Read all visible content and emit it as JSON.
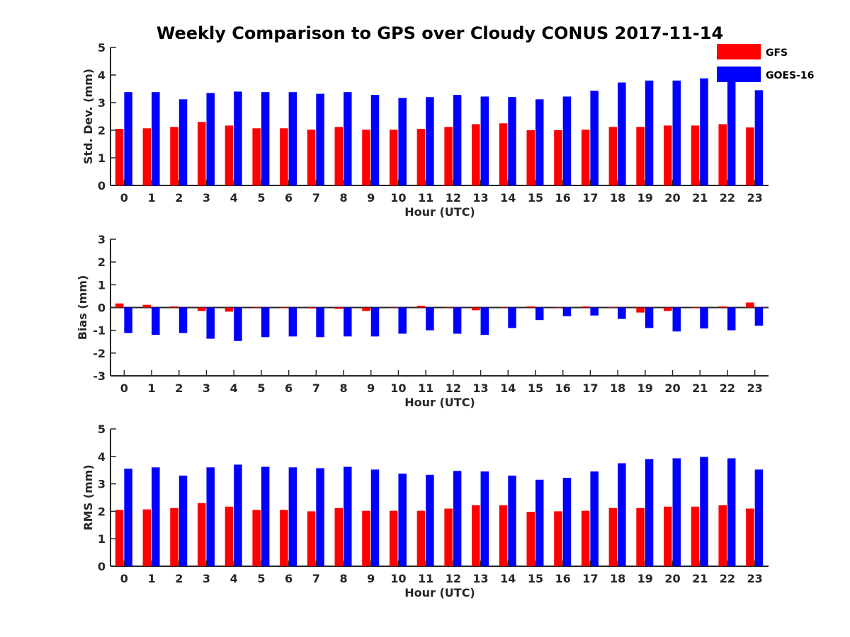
{
  "chart_data": {
    "title": "Weekly Comparison to GPS over Cloudy CONUS 2017-11-14",
    "legend": {
      "placement": "top-right",
      "entries": [
        {
          "name": "GFS",
          "color": "#ff0000"
        },
        {
          "name": "GOES-16",
          "color": "#0000ff"
        }
      ]
    },
    "categories": [
      "0",
      "1",
      "2",
      "3",
      "4",
      "5",
      "6",
      "7",
      "8",
      "9",
      "10",
      "11",
      "12",
      "13",
      "14",
      "15",
      "16",
      "17",
      "18",
      "19",
      "20",
      "21",
      "22",
      "23"
    ],
    "panels": [
      {
        "type": "bar",
        "xlabel": "Hour (UTC)",
        "ylabel": "Std. Dev. (mm)",
        "ylim": [
          0,
          5
        ],
        "yticks": [
          "0",
          "1",
          "2",
          "3",
          "4",
          "5"
        ],
        "series": [
          {
            "name": "GFS",
            "color": "#ff0000",
            "values": [
              2.05,
              2.07,
              2.12,
              2.3,
              2.17,
              2.07,
              2.07,
              2.02,
              2.12,
              2.02,
              2.02,
              2.05,
              2.12,
              2.22,
              2.25,
              2.0,
              2.0,
              2.02,
              2.12,
              2.12,
              2.17,
              2.17,
              2.22,
              2.1
            ]
          },
          {
            "name": "GOES-16",
            "color": "#0000ff",
            "values": [
              3.38,
              3.38,
              3.12,
              3.35,
              3.4,
              3.38,
              3.38,
              3.32,
              3.38,
              3.28,
              3.17,
              3.2,
              3.28,
              3.22,
              3.2,
              3.12,
              3.22,
              3.43,
              3.73,
              3.8,
              3.8,
              3.88,
              3.8,
              3.45
            ]
          }
        ]
      },
      {
        "type": "bar",
        "xlabel": "Hour (UTC)",
        "ylabel": "Bias (mm)",
        "ylim": [
          -3,
          3
        ],
        "yticks": [
          "-3",
          "-2",
          "-1",
          "0",
          "1",
          "2",
          "3"
        ],
        "series": [
          {
            "name": "GFS",
            "color": "#ff0000",
            "values": [
              0.18,
              0.12,
              0.05,
              -0.15,
              -0.18,
              0.02,
              -0.03,
              -0.04,
              -0.06,
              -0.15,
              0.0,
              0.08,
              0.0,
              -0.12,
              0.0,
              0.05,
              0.02,
              0.05,
              0.0,
              -0.22,
              -0.15,
              -0.03,
              0.05,
              0.22
            ]
          },
          {
            "name": "GOES-16",
            "color": "#0000ff",
            "values": [
              -1.12,
              -1.2,
              -1.12,
              -1.37,
              -1.47,
              -1.3,
              -1.27,
              -1.3,
              -1.27,
              -1.27,
              -1.15,
              -1.0,
              -1.15,
              -1.2,
              -0.9,
              -0.55,
              -0.38,
              -0.35,
              -0.5,
              -0.9,
              -1.05,
              -0.92,
              -1.0,
              -0.8
            ]
          }
        ]
      },
      {
        "type": "bar",
        "xlabel": "Hour (UTC)",
        "ylabel": "RMS (mm)",
        "ylim": [
          0,
          5
        ],
        "yticks": [
          "0",
          "1",
          "2",
          "3",
          "4",
          "5"
        ],
        "series": [
          {
            "name": "GFS",
            "color": "#ff0000",
            "values": [
              2.05,
              2.07,
              2.12,
              2.3,
              2.17,
              2.05,
              2.05,
              2.0,
              2.12,
              2.02,
              2.02,
              2.02,
              2.1,
              2.22,
              2.22,
              1.98,
              2.0,
              2.02,
              2.12,
              2.12,
              2.17,
              2.17,
              2.22,
              2.1
            ]
          },
          {
            "name": "GOES-16",
            "color": "#0000ff",
            "values": [
              3.55,
              3.6,
              3.3,
              3.6,
              3.7,
              3.62,
              3.6,
              3.57,
              3.62,
              3.52,
              3.37,
              3.33,
              3.47,
              3.45,
              3.3,
              3.15,
              3.22,
              3.45,
              3.75,
              3.9,
              3.93,
              3.98,
              3.93,
              3.52
            ]
          }
        ]
      }
    ]
  }
}
